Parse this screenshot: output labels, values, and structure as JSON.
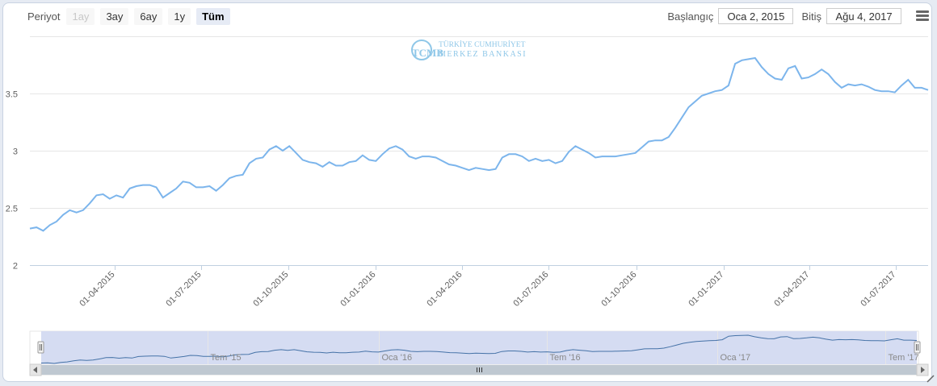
{
  "toolbar": {
    "period_label": "Periyot",
    "range_buttons": [
      {
        "label": "1ay",
        "state": "disabled"
      },
      {
        "label": "3ay",
        "state": "normal"
      },
      {
        "label": "6ay",
        "state": "normal"
      },
      {
        "label": "1y",
        "state": "normal"
      },
      {
        "label": "Tüm",
        "state": "active"
      }
    ],
    "start_label": "Başlangıç",
    "start_value": "Oca 2, 2015",
    "end_label": "Bitiş",
    "end_value": "Ağu 4, 2017"
  },
  "watermark": {
    "line1": "TÜRKİYE CUMHURİYET",
    "line2": "MERKEZ BANKASI",
    "logo_letters": "TCMB",
    "color": "#8fc7e8"
  },
  "chart_data": {
    "type": "line",
    "title": "",
    "xlabel": "",
    "ylabel": "",
    "x_range": [
      "2015-01-02",
      "2017-08-04"
    ],
    "ylim": [
      2,
      4
    ],
    "y_ticks": [
      2,
      2.5,
      3,
      3.5
    ],
    "y_tick_labels": [
      "2",
      "2.5",
      "3",
      "3.5"
    ],
    "grid": true,
    "line_color": "#7cb5ec",
    "x_ticks": [
      {
        "date": "2015-04-01",
        "label": "01-04-2015"
      },
      {
        "date": "2015-07-01",
        "label": "01-07-2015"
      },
      {
        "date": "2015-10-01",
        "label": "01-10-2015"
      },
      {
        "date": "2016-01-01",
        "label": "01-01-2016"
      },
      {
        "date": "2016-04-01",
        "label": "01-04-2016"
      },
      {
        "date": "2016-07-01",
        "label": "01-07-2016"
      },
      {
        "date": "2016-10-01",
        "label": "01-10-2016"
      },
      {
        "date": "2017-01-01",
        "label": "01-01-2017"
      },
      {
        "date": "2017-04-01",
        "label": "01-04-2017"
      },
      {
        "date": "2017-07-01",
        "label": "01-07-2017"
      }
    ],
    "series": [
      {
        "x": [
          "2015-01-02",
          "2015-01-09",
          "2015-01-16",
          "2015-01-23",
          "2015-01-30",
          "2015-02-06",
          "2015-02-13",
          "2015-02-20",
          "2015-02-27",
          "2015-03-06",
          "2015-03-13",
          "2015-03-20",
          "2015-03-27",
          "2015-04-03",
          "2015-04-10",
          "2015-04-17",
          "2015-04-24",
          "2015-05-01",
          "2015-05-08",
          "2015-05-15",
          "2015-05-22",
          "2015-05-29",
          "2015-06-05",
          "2015-06-12",
          "2015-06-19",
          "2015-06-26",
          "2015-07-03",
          "2015-07-10",
          "2015-07-17",
          "2015-07-24",
          "2015-07-31",
          "2015-08-07",
          "2015-08-14",
          "2015-08-21",
          "2015-08-28",
          "2015-09-04",
          "2015-09-11",
          "2015-09-18",
          "2015-09-25",
          "2015-10-02",
          "2015-10-09",
          "2015-10-16",
          "2015-10-23",
          "2015-10-30",
          "2015-11-06",
          "2015-11-13",
          "2015-11-20",
          "2015-11-27",
          "2015-12-04",
          "2015-12-11",
          "2015-12-18",
          "2015-12-25",
          "2016-01-01",
          "2016-01-08",
          "2016-01-15",
          "2016-01-22",
          "2016-01-29",
          "2016-02-05",
          "2016-02-12",
          "2016-02-19",
          "2016-02-26",
          "2016-03-04",
          "2016-03-11",
          "2016-03-18",
          "2016-03-25",
          "2016-04-01",
          "2016-04-08",
          "2016-04-15",
          "2016-04-22",
          "2016-04-29",
          "2016-05-06",
          "2016-05-13",
          "2016-05-20",
          "2016-05-27",
          "2016-06-03",
          "2016-06-10",
          "2016-06-17",
          "2016-06-24",
          "2016-07-01",
          "2016-07-08",
          "2016-07-15",
          "2016-07-22",
          "2016-07-29",
          "2016-08-05",
          "2016-08-12",
          "2016-08-19",
          "2016-08-26",
          "2016-09-02",
          "2016-09-09",
          "2016-09-16",
          "2016-09-23",
          "2016-09-30",
          "2016-10-07",
          "2016-10-14",
          "2016-10-21",
          "2016-10-28",
          "2016-11-04",
          "2016-11-11",
          "2016-11-18",
          "2016-11-25",
          "2016-12-02",
          "2016-12-09",
          "2016-12-16",
          "2016-12-23",
          "2016-12-30",
          "2017-01-06",
          "2017-01-13",
          "2017-01-20",
          "2017-01-27",
          "2017-02-03",
          "2017-02-10",
          "2017-02-17",
          "2017-02-24",
          "2017-03-03",
          "2017-03-10",
          "2017-03-17",
          "2017-03-24",
          "2017-03-31",
          "2017-04-07",
          "2017-04-14",
          "2017-04-21",
          "2017-04-28",
          "2017-05-05",
          "2017-05-12",
          "2017-05-19",
          "2017-05-26",
          "2017-06-02",
          "2017-06-09",
          "2017-06-16",
          "2017-06-23",
          "2017-06-30",
          "2017-07-07",
          "2017-07-14",
          "2017-07-21",
          "2017-07-28",
          "2017-08-04"
        ],
        "values": [
          2.32,
          2.33,
          2.3,
          2.35,
          2.38,
          2.44,
          2.48,
          2.46,
          2.48,
          2.54,
          2.61,
          2.62,
          2.58,
          2.61,
          2.59,
          2.67,
          2.69,
          2.7,
          2.7,
          2.68,
          2.59,
          2.63,
          2.67,
          2.73,
          2.72,
          2.68,
          2.68,
          2.69,
          2.65,
          2.7,
          2.76,
          2.78,
          2.79,
          2.89,
          2.93,
          2.94,
          3.01,
          3.04,
          3.0,
          3.04,
          2.98,
          2.92,
          2.9,
          2.89,
          2.86,
          2.9,
          2.87,
          2.87,
          2.9,
          2.91,
          2.96,
          2.92,
          2.91,
          2.97,
          3.02,
          3.04,
          3.01,
          2.95,
          2.93,
          2.95,
          2.95,
          2.94,
          2.91,
          2.88,
          2.87,
          2.85,
          2.83,
          2.85,
          2.84,
          2.83,
          2.84,
          2.94,
          2.97,
          2.97,
          2.95,
          2.91,
          2.93,
          2.91,
          2.92,
          2.89,
          2.91,
          2.99,
          3.04,
          3.01,
          2.98,
          2.94,
          2.95,
          2.95,
          2.95,
          2.96,
          2.97,
          2.98,
          3.03,
          3.08,
          3.09,
          3.09,
          3.12,
          3.2,
          3.29,
          3.38,
          3.43,
          3.48,
          3.5,
          3.52,
          3.53,
          3.57,
          3.76,
          3.79,
          3.8,
          3.81,
          3.73,
          3.67,
          3.63,
          3.62,
          3.72,
          3.74,
          3.63,
          3.64,
          3.67,
          3.71,
          3.67,
          3.6,
          3.55,
          3.58,
          3.57,
          3.58,
          3.56,
          3.53,
          3.52,
          3.52,
          3.51,
          3.57,
          3.62,
          3.55,
          3.55,
          3.53
        ]
      }
    ],
    "navigator": {
      "x_labels": [
        {
          "date": "2015-07-01",
          "label": "Tem '15"
        },
        {
          "date": "2016-01-01",
          "label": "Oca '16"
        },
        {
          "date": "2016-07-01",
          "label": "Tem '16"
        },
        {
          "date": "2017-01-01",
          "label": "Oca '17"
        },
        {
          "date": "2017-07-01",
          "label": "Tem '17"
        }
      ],
      "selected_range": [
        "2015-01-02",
        "2017-08-04"
      ]
    }
  }
}
